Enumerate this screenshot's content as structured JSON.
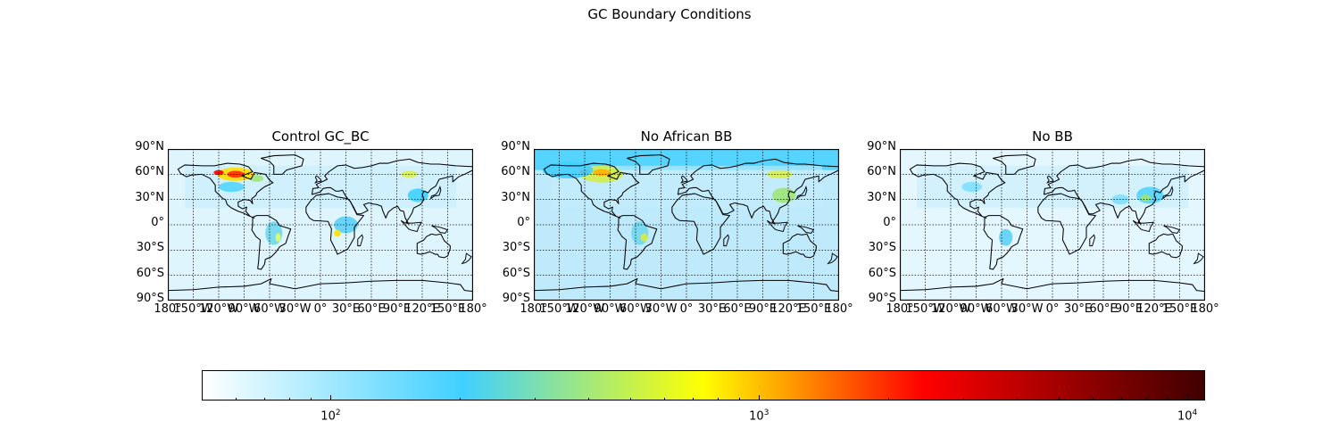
{
  "figure": {
    "title": "GC Boundary Conditions"
  },
  "panels": [
    {
      "title": "Control GC_BC"
    },
    {
      "title": "No African BB"
    },
    {
      "title": "No BB"
    }
  ],
  "lat_ticks": [
    "90°N",
    "60°N",
    "30°N",
    "0°",
    "30°S",
    "60°S",
    "90°S"
  ],
  "lon_ticks": [
    "180°",
    "150°W",
    "120°W",
    "90°W",
    "60°W",
    "30°W",
    "0°",
    "30°E",
    "60°E",
    "90°E",
    "120°E",
    "150°E",
    "180°"
  ],
  "colorbar": {
    "scale": "log",
    "range": [
      50,
      11000
    ],
    "colormap": [
      "#ffffff",
      "#40d0ff",
      "#ffff00",
      "#ff0000",
      "#400000"
    ],
    "ticks": [
      {
        "base": "10",
        "exp": "2"
      },
      {
        "base": "10",
        "exp": "3"
      },
      {
        "base": "10",
        "exp": "4"
      }
    ]
  },
  "colors": {
    "background": "#d9f3fd",
    "land": "#e4f6fe",
    "coast": "#000000",
    "grid": "#000000"
  }
}
